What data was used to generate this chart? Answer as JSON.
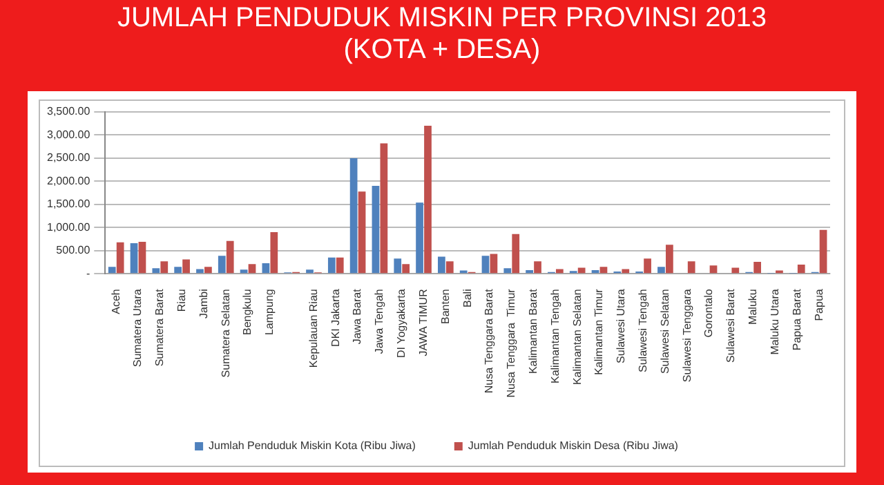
{
  "chart_data": {
    "type": "bar",
    "title": "JUMLAH PENDUDUK MISKIN PER PROVINSI 2013",
    "subtitle": "(KOTA + DESA)",
    "categories": [
      "Aceh",
      "Sumatera Utara",
      "Sumatera Barat",
      "Riau",
      "Jambi",
      "Sumatera Selatan",
      "Bengkulu",
      "Lampung",
      null,
      "Kepulauan Riau",
      "DKI Jakarta",
      "Jawa Barat",
      "Jawa Tengah",
      "DI Yogyakarta",
      "JAWA TIMUR",
      "Banten",
      "Bali",
      "Nusa Tenggara Barat",
      "Nusa Tenggara  Timur",
      "Kalimantan Barat",
      "Kalimantan Tengah",
      "Kalimantan Selatan",
      "Kalimantan Timur",
      "Sulawesi Utara",
      "Sulawesi Tengah",
      "Sulawesi Selatan",
      "Sulawesi Tenggara",
      "Gorontalo",
      "Sulawesi Barat",
      "Maluku",
      "Maluku Utara",
      "Papua Barat",
      "Papua"
    ],
    "series": [
      {
        "name": "Jumlah Penduduk Miskin Kota (Ribu Jiwa)",
        "color": "#4f81bd",
        "values": [
          150,
          660,
          120,
          150,
          100,
          390,
          90,
          230,
          30,
          90,
          350,
          2500,
          1900,
          330,
          1540,
          370,
          70,
          390,
          120,
          80,
          40,
          60,
          80,
          50,
          50,
          150,
          null,
          null,
          null,
          40,
          10,
          10,
          40
        ]
      },
      {
        "name": "Jumlah Penduduk Miskin Desa (Ribu Jiwa)",
        "color": "#c0504d",
        "values": [
          680,
          690,
          270,
          310,
          150,
          710,
          210,
          900,
          40,
          30,
          350,
          1780,
          2820,
          210,
          3200,
          270,
          40,
          430,
          860,
          270,
          100,
          130,
          150,
          100,
          330,
          630,
          270,
          180,
          130,
          260,
          70,
          200,
          950
        ]
      }
    ],
    "ylim": [
      0,
      3500
    ],
    "yticks": [
      {
        "value": 0,
        "label": "-"
      },
      {
        "value": 500,
        "label": "500.00"
      },
      {
        "value": 1000,
        "label": "1,000.00"
      },
      {
        "value": 1500,
        "label": "1,500.00"
      },
      {
        "value": 2000,
        "label": "2,000.00"
      },
      {
        "value": 2500,
        "label": "2,500.00"
      },
      {
        "value": 3000,
        "label": "3,000.00"
      },
      {
        "value": 3500,
        "label": "3,500.00"
      }
    ],
    "grid": "y",
    "legend": "bottom"
  }
}
